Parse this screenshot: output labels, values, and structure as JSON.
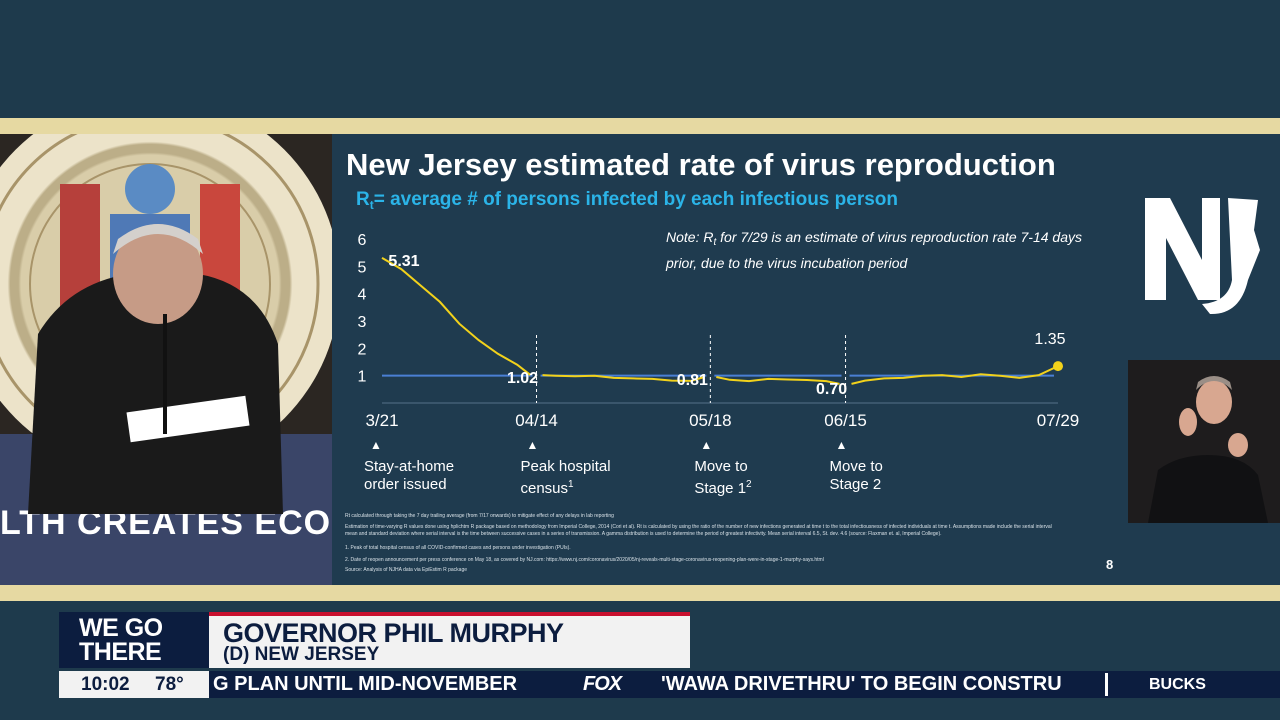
{
  "slide": {
    "title": "New Jersey estimated rate of virus reproduction",
    "subtitle_r": "R",
    "subtitle_sub": "t",
    "subtitle_rest": "= average # of persons infected by each infectious person",
    "note_prefix": "Note: R",
    "note_sub": "t",
    "note_rest": " for 7/29 is an estimate of virus reproduction rate 7-14 days prior, due to the virus incubation period",
    "milestones": [
      {
        "label_lines": [
          "Stay-at-home",
          "order issued"
        ],
        "sup": ""
      },
      {
        "label_lines": [
          "Peak hospital",
          "census"
        ],
        "sup": "1"
      },
      {
        "label_lines": [
          "Move to",
          "Stage 1"
        ],
        "sup": "2"
      },
      {
        "label_lines": [
          "Move to",
          "Stage 2"
        ],
        "sup": ""
      }
    ],
    "footnotes": [
      "Rt calculated through taking the 7 day trailing average (from 7/17 onwards) to mitigate effect of any delays in lab reporting",
      "Estimation of time-varying R values done using hplichtm R package based on methodology from Imperial College, 2014 (Cori et al).   Rt is calculated by using the ratio of the number of new infections generated at time t to the total infectiousness of infected individuals at time t.  Assumptions made include the serial interval",
      "mean and standard deviation where serial interval is the time between successive cases in a series of transmission.  A gamma distribution is used to determine the period of greatest infectivity.  Mean serial interval 6.5, St. dev. 4.6 (source: Flaxman et. al, Imperial College).",
      "1. Peak of total hospital census of all COVID-confirmed cases and persons under investigation (PUIs).",
      "2. Date of reopen announcement per press conference on May 18, as covered by NJ.com: https://www.nj.com/coronavirus/2020/05/nj-reveals-multi-stage-coronavirus-reopening-plan-were-in-stage-1-murphy-says.html",
      "Source: Analysis of NJHA data via EpiEstim R package"
    ],
    "page_number": "8"
  },
  "chart_data": {
    "type": "line",
    "y_ticks": [
      "6",
      "5",
      "4",
      "3",
      "2",
      "1"
    ],
    "ylim": [
      0,
      6
    ],
    "x_tick_labels": [
      "3/21",
      "04/14",
      "05/18",
      "06/15",
      "07/29"
    ],
    "x": [
      "3/21",
      "3/24",
      "3/27",
      "3/30",
      "4/02",
      "4/05",
      "4/08",
      "4/11",
      "4/14",
      "4/18",
      "4/22",
      "4/26",
      "4/30",
      "5/04",
      "5/08",
      "5/12",
      "5/15",
      "5/18",
      "5/21",
      "5/25",
      "5/29",
      "6/02",
      "6/06",
      "6/10",
      "6/15",
      "6/19",
      "6/23",
      "6/27",
      "7/01",
      "7/05",
      "7/09",
      "7/13",
      "7/17",
      "7/21",
      "7/25",
      "7/29"
    ],
    "series": [
      {
        "values": [
          5.31,
          4.9,
          4.3,
          3.7,
          2.9,
          2.3,
          1.8,
          1.4,
          1.02,
          1.0,
          0.98,
          1.0,
          0.92,
          0.9,
          0.88,
          0.82,
          0.81,
          0.95,
          0.85,
          0.8,
          0.88,
          0.86,
          0.84,
          0.8,
          0.7,
          0.82,
          0.9,
          0.92,
          1.0,
          1.02,
          0.95,
          1.05,
          1.0,
          0.92,
          1.02,
          1.35
        ],
        "color": "#f2d21b"
      }
    ],
    "reference_line": {
      "value": 1,
      "color": "#4a7fd4"
    },
    "annotations": [
      "5.31",
      "1.02",
      "0.81",
      "0.70",
      "1.35"
    ],
    "grid": false
  },
  "podium_text": "LTH CREATES ECONO",
  "lower_third": {
    "brand_line1": "WE GO",
    "brand_line2": "THERE",
    "name": "GOVERNOR PHIL MURPHY",
    "title": "(D) NEW JERSEY",
    "time": "10:02",
    "temperature": "78°",
    "ticker_left": "G PLAN UNTIL MID-NOVEMBER",
    "ticker_logo": "FOX",
    "ticker_right": "'WAWA DRIVETHRU' TO BEGIN CONSTRU",
    "ticker_next": "BUCKS"
  },
  "colors": {
    "background": "#1e3a4c",
    "gold": "#e6d9a2",
    "line": "#f2d21b",
    "reference": "#4a7fd4",
    "subtitle": "#2bb4e8",
    "navy": "#0c1d3f",
    "red": "#c8102e"
  }
}
